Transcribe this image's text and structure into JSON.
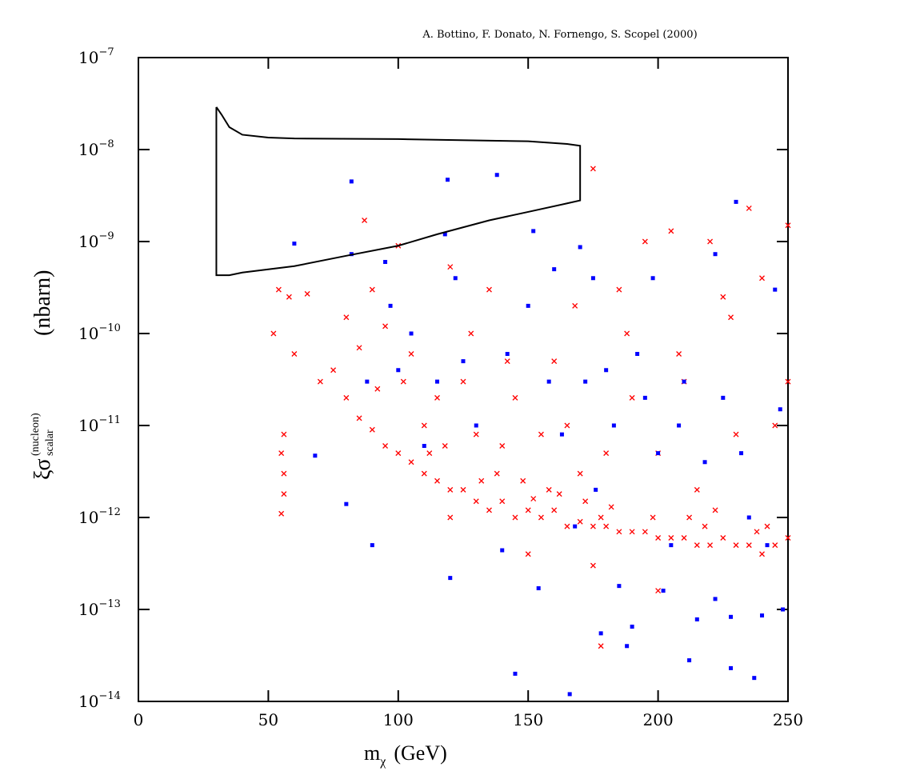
{
  "chart_data": {
    "type": "scatter",
    "title": "A. Bottino, F. Donato, N. Fornengo, S. Scopel (2000)",
    "xlabel": "m",
    "xlabel_sub": "χ",
    "xlabel_unit": "(GeV)",
    "ylabel": "ξσ",
    "ylabel_sup": "(nucleon)",
    "ylabel_sub": "scalar",
    "ylabel_unit": "(nbarn)",
    "xlim": [
      0,
      250
    ],
    "xticks": [
      0,
      50,
      100,
      150,
      200,
      250
    ],
    "ylim": [
      1e-14,
      1e-07
    ],
    "log_y": true,
    "yticks": [
      {
        "value": 1e-07,
        "label": "10",
        "exp": "−7"
      },
      {
        "value": 1e-08,
        "label": "10",
        "exp": "−8"
      },
      {
        "value": 1e-09,
        "label": "10",
        "exp": "−9"
      },
      {
        "value": 1e-10,
        "label": "10",
        "exp": "−10"
      },
      {
        "value": 1e-11,
        "label": "10",
        "exp": "−11"
      },
      {
        "value": 1e-12,
        "label": "10",
        "exp": "−12"
      },
      {
        "value": 1e-13,
        "label": "10",
        "exp": "−13"
      },
      {
        "value": 1e-14,
        "label": "10",
        "exp": "−14"
      }
    ],
    "series": [
      {
        "type": "scatter",
        "marker": "cross",
        "color": "#ff0000",
        "x": [
          55,
          56,
          56,
          55,
          56,
          52,
          54,
          58,
          60,
          65,
          70,
          75,
          80,
          80,
          85,
          85,
          87,
          90,
          90,
          95,
          95,
          100,
          100,
          105,
          105,
          110,
          110,
          115,
          115,
          120,
          120,
          120,
          125,
          125,
          130,
          130,
          135,
          135,
          140,
          140,
          145,
          145,
          150,
          150,
          155,
          155,
          160,
          160,
          165,
          165,
          170,
          170,
          175,
          175,
          175,
          178,
          180,
          180,
          185,
          185,
          190,
          190,
          195,
          195,
          200,
          200,
          200,
          205,
          205,
          210,
          210,
          215,
          215,
          220,
          220,
          225,
          225,
          230,
          230,
          235,
          235,
          240,
          240,
          245,
          245,
          250,
          250,
          250,
          128,
          142,
          168,
          188,
          208,
          228,
          102,
          92,
          118,
          138,
          158,
          172,
          198,
          218,
          238,
          112,
          132,
          152,
          178,
          222,
          242,
          148,
          162,
          182,
          212
        ],
        "values": [
          1.1e-12,
          1.8e-12,
          3e-12,
          5e-12,
          8e-12,
          1e-10,
          3e-10,
          2.5e-10,
          6e-11,
          2.7e-10,
          3e-11,
          4e-11,
          2e-11,
          1.5e-10,
          1.2e-11,
          7e-11,
          1.7e-09,
          9e-12,
          3e-10,
          6e-12,
          1.2e-10,
          5e-12,
          9e-10,
          4e-12,
          6e-11,
          3e-12,
          1e-11,
          2.5e-12,
          2e-11,
          5.3e-10,
          1e-12,
          2e-12,
          2e-12,
          3e-11,
          1.5e-12,
          8e-12,
          1.2e-12,
          3e-10,
          1.5e-12,
          6e-12,
          1e-12,
          2e-11,
          1.2e-12,
          4e-13,
          1e-12,
          8e-12,
          1.2e-12,
          5e-11,
          8e-13,
          1e-11,
          9e-13,
          3e-12,
          6.2e-09,
          8e-13,
          3e-13,
          4e-14,
          8e-13,
          5e-12,
          7e-13,
          3e-10,
          7e-13,
          2e-11,
          7e-13,
          1e-09,
          6e-13,
          5e-12,
          1.6e-13,
          6e-13,
          1.3e-09,
          6e-13,
          3e-11,
          5e-13,
          2e-12,
          5e-13,
          1e-09,
          6e-13,
          2.5e-10,
          5e-13,
          8e-12,
          2.3e-09,
          5e-13,
          4e-13,
          4e-10,
          5e-13,
          1e-11,
          1.5e-09,
          6e-13,
          3e-11,
          1e-10,
          5e-11,
          2e-10,
          1e-10,
          6e-11,
          1.5e-10,
          3e-11,
          2.5e-11,
          6e-12,
          3e-12,
          2e-12,
          1.5e-12,
          1e-12,
          8e-13,
          7e-13,
          5e-12,
          2.5e-12,
          1.6e-12,
          1e-12,
          1.2e-12,
          8e-13,
          2.5e-12,
          1.8e-12,
          1.3e-12,
          1e-12
        ]
      },
      {
        "type": "scatter",
        "marker": "square",
        "color": "#0000ff",
        "x": [
          60,
          68,
          80,
          82,
          82,
          88,
          90,
          95,
          97,
          100,
          105,
          110,
          115,
          118,
          119,
          120,
          122,
          125,
          130,
          138,
          140,
          142,
          145,
          150,
          152,
          154,
          158,
          160,
          163,
          166,
          168,
          170,
          172,
          175,
          176,
          178,
          180,
          183,
          185,
          188,
          190,
          192,
          195,
          198,
          200,
          202,
          205,
          208,
          210,
          212,
          215,
          218,
          222,
          222,
          225,
          228,
          228,
          230,
          232,
          235,
          237,
          240,
          242,
          245,
          247,
          248
        ],
        "values": [
          9.5e-10,
          4.7e-12,
          1.4e-12,
          4.5e-09,
          7.3e-10,
          3e-11,
          5e-13,
          6e-10,
          2e-10,
          4e-11,
          1e-10,
          6e-12,
          3e-11,
          1.2e-09,
          4.7e-09,
          2.2e-13,
          4e-10,
          5e-11,
          1e-11,
          5.3e-09,
          4.4e-13,
          6e-11,
          2e-14,
          2e-10,
          1.3e-09,
          1.7e-13,
          3e-11,
          5e-10,
          8e-12,
          1.2e-14,
          8e-13,
          8.7e-10,
          3e-11,
          4e-10,
          2e-12,
          5.5e-14,
          4e-11,
          1e-11,
          1.8e-13,
          4e-14,
          6.5e-14,
          6e-11,
          2e-11,
          4e-10,
          5e-12,
          1.6e-13,
          5e-13,
          1e-11,
          3e-11,
          2.8e-14,
          7.8e-14,
          4e-12,
          7.3e-10,
          1.3e-13,
          2e-11,
          8.3e-14,
          2.3e-14,
          2.7e-09,
          5e-12,
          1e-12,
          1.8e-14,
          8.6e-14,
          5e-13,
          3e-10,
          1.5e-11,
          1e-13
        ]
      },
      {
        "type": "line",
        "color": "#000000",
        "x": [
          30,
          32,
          35,
          40,
          50,
          60,
          100,
          150,
          165,
          170,
          170,
          165,
          150,
          135,
          115,
          100,
          80,
          60,
          40,
          35,
          30,
          30
        ],
        "values": [
          2.9e-08,
          2.4e-08,
          1.75e-08,
          1.45e-08,
          1.35e-08,
          1.32e-08,
          1.3e-08,
          1.23e-08,
          1.15e-08,
          1.1e-08,
          2.8e-09,
          2.6e-09,
          2.1e-09,
          1.7e-09,
          1.2e-09,
          9e-10,
          7e-10,
          5.4e-10,
          4.6e-10,
          4.3e-10,
          4.3e-10,
          2.9e-08
        ]
      }
    ]
  }
}
